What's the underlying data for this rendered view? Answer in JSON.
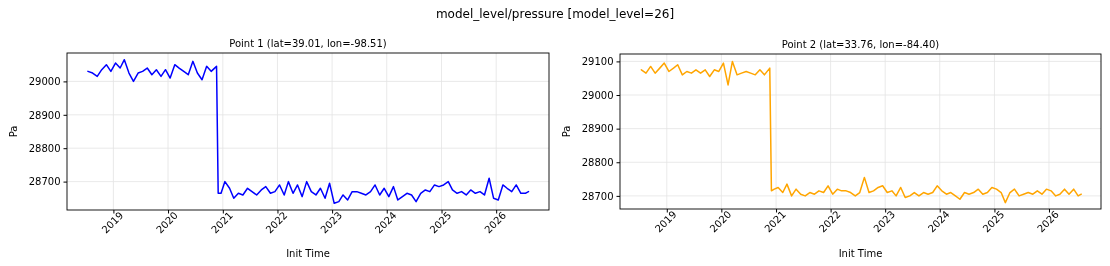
{
  "chart_data": [
    {
      "type": "line",
      "title": "Point 1 (lat=39.01, lon=-98.51)",
      "annotations": [
        "model_level/pressure [model_level=26]"
      ],
      "xlabel": "Init Time",
      "ylabel": "Pa",
      "x": [
        "2018-07-15",
        "2018-08-15",
        "2018-09-15",
        "2018-10-15",
        "2018-11-15",
        "2018-12-15",
        "2019-01-15",
        "2019-02-15",
        "2019-03-15",
        "2019-04-15",
        "2019-05-15",
        "2019-06-15",
        "2019-07-15",
        "2019-08-15",
        "2019-09-15",
        "2019-10-15",
        "2019-11-15",
        "2019-12-15",
        "2020-01-15",
        "2020-02-15",
        "2020-03-15",
        "2020-04-15",
        "2020-05-15",
        "2020-06-15",
        "2020-07-15",
        "2020-08-15",
        "2020-09-15",
        "2020-10-15",
        "2020-11-20",
        "2020-12-01",
        "2020-12-20",
        "2021-01-15",
        "2021-02-15",
        "2021-03-15",
        "2021-04-15",
        "2021-05-15",
        "2021-06-15",
        "2021-07-15",
        "2021-08-15",
        "2021-09-15",
        "2021-10-15",
        "2021-11-15",
        "2021-12-15",
        "2022-01-15",
        "2022-02-15",
        "2022-03-15",
        "2022-04-15",
        "2022-05-15",
        "2022-06-15",
        "2022-07-15",
        "2022-08-15",
        "2022-09-15",
        "2022-10-15",
        "2022-11-15",
        "2022-12-15",
        "2023-01-15",
        "2023-02-15",
        "2023-03-15",
        "2023-04-15",
        "2023-05-15",
        "2023-06-15",
        "2023-07-15",
        "2023-08-15",
        "2023-09-15",
        "2023-10-15",
        "2023-11-15",
        "2023-12-15",
        "2024-01-15",
        "2024-02-15",
        "2024-03-15",
        "2024-04-15",
        "2024-05-15",
        "2024-06-15",
        "2024-07-15",
        "2024-08-15",
        "2024-09-15",
        "2024-10-15",
        "2024-11-15",
        "2024-12-15",
        "2025-01-15",
        "2025-02-15",
        "2025-03-15",
        "2025-04-15",
        "2025-05-15",
        "2025-06-15",
        "2025-07-15",
        "2025-08-15",
        "2025-09-15",
        "2025-10-15",
        "2025-11-15",
        "2025-12-15",
        "2026-01-15",
        "2026-02-15",
        "2026-03-15",
        "2026-04-15",
        "2026-05-15",
        "2026-06-15",
        "2026-07-15",
        "2026-08-05"
      ],
      "series": [
        {
          "color": "#0000ff",
          "values": [
            29030,
            29025,
            29015,
            29035,
            29050,
            29030,
            29055,
            29040,
            29065,
            29025,
            29000,
            29025,
            29030,
            29040,
            29020,
            29035,
            29015,
            29035,
            29010,
            29050,
            29040,
            29030,
            29020,
            29060,
            29025,
            29005,
            29045,
            29030,
            29045,
            28665,
            28665,
            28700,
            28680,
            28650,
            28665,
            28660,
            28680,
            28670,
            28660,
            28675,
            28685,
            28665,
            28670,
            28690,
            28660,
            28700,
            28665,
            28690,
            28655,
            28700,
            28670,
            28660,
            28680,
            28650,
            28695,
            28635,
            28640,
            28660,
            28645,
            28670,
            28670,
            28665,
            28660,
            28670,
            28690,
            28660,
            28680,
            28655,
            28685,
            28645,
            28655,
            28665,
            28660,
            28640,
            28665,
            28675,
            28670,
            28690,
            28685,
            28690,
            28700,
            28675,
            28665,
            28670,
            28660,
            28675,
            28665,
            28670,
            28660,
            28710,
            28650,
            28645,
            28690,
            28680,
            28670,
            28690,
            28665,
            28665,
            28670
          ]
        }
      ],
      "xlim": [
        "2018-02-25",
        "2026-12-20"
      ],
      "xticks": [
        "2019",
        "2020",
        "2021",
        "2022",
        "2023",
        "2024",
        "2025",
        "2026"
      ],
      "ylim": [
        28615,
        29085
      ],
      "yticks": [
        28700,
        28800,
        28900,
        29000
      ],
      "grid": true,
      "line_style": "solid"
    },
    {
      "type": "line",
      "title": "Point 2 (lat=33.76, lon=-84.40)",
      "xlabel": "Init Time",
      "ylabel": "Pa",
      "x": [
        "2018-07-15",
        "2018-08-15",
        "2018-09-15",
        "2018-10-15",
        "2018-11-15",
        "2018-12-15",
        "2019-01-15",
        "2019-02-15",
        "2019-03-15",
        "2019-04-15",
        "2019-05-15",
        "2019-06-15",
        "2019-07-15",
        "2019-08-15",
        "2019-09-15",
        "2019-10-15",
        "2019-11-15",
        "2019-12-15",
        "2020-01-15",
        "2020-02-15",
        "2020-03-15",
        "2020-04-15",
        "2020-05-15",
        "2020-06-15",
        "2020-07-15",
        "2020-08-15",
        "2020-09-15",
        "2020-10-15",
        "2020-11-20",
        "2020-12-01",
        "2020-12-20",
        "2021-01-15",
        "2021-02-15",
        "2021-03-15",
        "2021-04-15",
        "2021-05-15",
        "2021-06-15",
        "2021-07-15",
        "2021-08-15",
        "2021-09-15",
        "2021-10-15",
        "2021-11-15",
        "2021-12-15",
        "2022-01-15",
        "2022-02-15",
        "2022-03-15",
        "2022-04-15",
        "2022-05-15",
        "2022-06-15",
        "2022-07-15",
        "2022-08-15",
        "2022-09-15",
        "2022-10-15",
        "2022-11-15",
        "2022-12-15",
        "2023-01-15",
        "2023-02-15",
        "2023-03-15",
        "2023-04-15",
        "2023-05-15",
        "2023-06-15",
        "2023-07-15",
        "2023-08-15",
        "2023-09-15",
        "2023-10-15",
        "2023-11-15",
        "2023-12-15",
        "2024-01-15",
        "2024-02-15",
        "2024-03-15",
        "2024-04-15",
        "2024-05-15",
        "2024-06-15",
        "2024-07-15",
        "2024-08-15",
        "2024-09-15",
        "2024-10-15",
        "2024-11-15",
        "2024-12-15",
        "2025-01-15",
        "2025-02-15",
        "2025-03-15",
        "2025-04-15",
        "2025-05-15",
        "2025-06-15",
        "2025-07-15",
        "2025-08-15",
        "2025-09-15",
        "2025-10-15",
        "2025-11-15",
        "2025-12-15",
        "2026-01-15",
        "2026-02-15",
        "2026-03-15",
        "2026-04-15",
        "2026-05-15",
        "2026-06-15",
        "2026-07-15",
        "2026-08-05"
      ],
      "series": [
        {
          "color": "#ffa500",
          "values": [
            29075,
            29065,
            29085,
            29065,
            29080,
            29095,
            29070,
            29080,
            29090,
            29060,
            29070,
            29065,
            29075,
            29065,
            29075,
            29055,
            29075,
            29070,
            29095,
            29030,
            29100,
            29060,
            29065,
            29070,
            29065,
            29060,
            29075,
            29060,
            29080,
            28715,
            28720,
            28725,
            28710,
            28735,
            28700,
            28720,
            28705,
            28700,
            28710,
            28705,
            28715,
            28710,
            28730,
            28705,
            28720,
            28715,
            28715,
            28710,
            28700,
            28710,
            28755,
            28710,
            28715,
            28725,
            28730,
            28710,
            28715,
            28700,
            28725,
            28695,
            28700,
            28710,
            28700,
            28710,
            28705,
            28710,
            28730,
            28715,
            28705,
            28710,
            28700,
            28690,
            28710,
            28705,
            28710,
            28720,
            28705,
            28710,
            28725,
            28720,
            28710,
            28680,
            28710,
            28720,
            28700,
            28705,
            28710,
            28705,
            28715,
            28705,
            28720,
            28715,
            28700,
            28705,
            28720,
            28705,
            28720,
            28700,
            28705
          ]
        }
      ],
      "xlim": [
        "2018-02-22",
        "2026-12-15"
      ],
      "xticks": [
        "2019",
        "2020",
        "2021",
        "2022",
        "2023",
        "2024",
        "2025",
        "2026"
      ],
      "ylim": [
        28661,
        29122
      ],
      "yticks": [
        28700,
        28800,
        28900,
        29000,
        29100
      ],
      "grid": true,
      "line_style": "solid"
    }
  ]
}
